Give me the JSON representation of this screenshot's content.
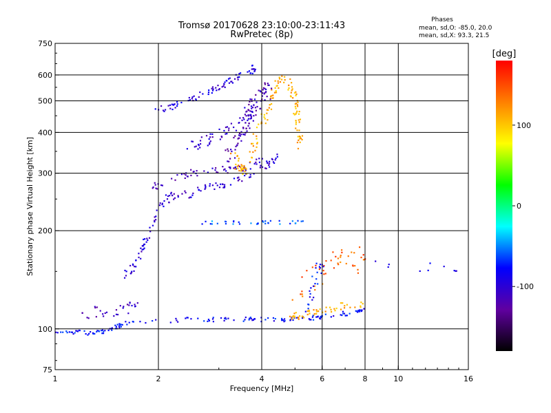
{
  "chart_data": {
    "type": "scatter",
    "title": "Tromsø 20170628 23:10:00-23:11:43",
    "subtitle": "RwPretec (8p)",
    "phases_header": "Phases",
    "phases_line1": "mean, sd,O: -85.0, 20.0",
    "phases_line2": "mean, sd,X:  93.3, 21.5",
    "xlabel": "Frequency [MHz]",
    "ylabel": "Stationary phase Virtual Height [km]",
    "x_scale": "log",
    "y_scale": "log",
    "xlim": [
      1,
      16
    ],
    "ylim": [
      75,
      750
    ],
    "x_ticks": [
      {
        "value": 1,
        "label": "1"
      },
      {
        "value": 2,
        "label": "2"
      },
      {
        "value": 4,
        "label": "4"
      },
      {
        "value": 6,
        "label": "6"
      },
      {
        "value": 8,
        "label": "8"
      },
      {
        "value": 10,
        "label": "10"
      },
      {
        "value": 16,
        "label": "16"
      }
    ],
    "x_gridlines": [
      2,
      4,
      6,
      8,
      10
    ],
    "y_ticks": [
      {
        "value": 75,
        "label": "75"
      },
      {
        "value": 100,
        "label": "100"
      },
      {
        "value": 200,
        "label": "200"
      },
      {
        "value": 300,
        "label": "300"
      },
      {
        "value": 400,
        "label": "400"
      },
      {
        "value": 500,
        "label": "500"
      },
      {
        "value": 600,
        "label": "600"
      },
      {
        "value": 750,
        "label": "750"
      }
    ],
    "y_gridlines": [
      100,
      200,
      300,
      400,
      500,
      600
    ],
    "grid": true,
    "colorbar": {
      "label": "[deg]",
      "range": [
        -180,
        180
      ],
      "ticks": [
        {
          "value": 100,
          "label": "100"
        },
        {
          "value": 0,
          "label": "0"
        },
        {
          "value": -100,
          "label": "-100"
        }
      ],
      "colors": [
        "#000000",
        "#6000a0",
        "#0000ff",
        "#00ffff",
        "#00ff00",
        "#ffff00",
        "#ff8000",
        "#ff0000"
      ]
    },
    "series": [
      {
        "traces": [
          [
            1.0,
            98
          ],
          [
            1.1,
            98
          ],
          [
            1.25,
            97
          ],
          [
            1.4,
            98
          ],
          [
            1.6,
            104
          ],
          [
            2.0,
            106
          ],
          [
            2.6,
            107
          ],
          [
            3.2,
            107
          ],
          [
            4.0,
            107
          ],
          [
            4.8,
            107
          ],
          [
            5.6,
            108
          ],
          [
            6.4,
            110
          ],
          [
            7.2,
            112
          ],
          [
            8.0,
            114
          ]
        ],
        "phase": -80,
        "n": 160,
        "jitter": 0.008
      },
      {
        "traces": [
          [
            1.2,
            112
          ],
          [
            1.4,
            113
          ],
          [
            1.6,
            115
          ],
          [
            1.75,
            118
          ]
        ],
        "phase": -110,
        "n": 30,
        "jitter": 0.02
      },
      {
        "traces": [
          [
            1.6,
            145
          ],
          [
            1.7,
            158
          ],
          [
            1.8,
            175
          ],
          [
            1.88,
            195
          ],
          [
            1.95,
            220
          ],
          [
            2.05,
            245
          ],
          [
            2.2,
            255
          ],
          [
            2.5,
            260
          ],
          [
            2.8,
            270
          ],
          [
            3.2,
            280
          ],
          [
            3.5,
            290
          ],
          [
            3.8,
            305
          ],
          [
            4.2,
            320
          ],
          [
            4.5,
            345
          ]
        ],
        "phase": -100,
        "n": 130,
        "jitter": 0.015
      },
      {
        "traces": [
          [
            1.8,
            270
          ],
          [
            2.0,
            275
          ],
          [
            2.2,
            290
          ],
          [
            2.5,
            300
          ],
          [
            2.8,
            305
          ],
          [
            3.2,
            308
          ],
          [
            3.6,
            310
          ],
          [
            4.0,
            330
          ]
        ],
        "phase": -110,
        "n": 60,
        "jitter": 0.012
      },
      {
        "traces": [
          [
            1.95,
            470
          ],
          [
            2.2,
            480
          ],
          [
            2.5,
            505
          ],
          [
            2.8,
            535
          ],
          [
            3.1,
            560
          ],
          [
            3.4,
            590
          ],
          [
            3.7,
            615
          ],
          [
            3.85,
            640
          ]
        ],
        "phase": -95,
        "n": 80,
        "jitter": 0.012
      },
      {
        "traces": [
          [
            2.4,
            360
          ],
          [
            2.8,
            380
          ],
          [
            3.2,
            410
          ],
          [
            3.6,
            450
          ],
          [
            3.8,
            500
          ]
        ],
        "phase": -105,
        "n": 60,
        "jitter": 0.02
      },
      {
        "traces": [
          [
            3.3,
            340
          ],
          [
            3.5,
            300
          ],
          [
            3.7,
            340
          ],
          [
            3.9,
            400
          ],
          [
            4.1,
            450
          ],
          [
            4.3,
            520
          ],
          [
            4.5,
            580
          ],
          [
            4.8,
            560
          ],
          [
            5.0,
            500
          ],
          [
            5.1,
            420
          ],
          [
            5.2,
            360
          ]
        ],
        "phase": 110,
        "n": 140,
        "jitter": 0.02
      },
      {
        "traces": [
          [
            3.2,
            330
          ],
          [
            3.4,
            380
          ],
          [
            3.6,
            420
          ],
          [
            3.8,
            480
          ],
          [
            4.0,
            520
          ],
          [
            4.2,
            540
          ]
        ],
        "phase": -115,
        "n": 90,
        "jitter": 0.03
      },
      {
        "traces": [
          [
            2.6,
            212
          ],
          [
            3.0,
            212
          ],
          [
            3.4,
            212
          ],
          [
            3.8,
            212
          ],
          [
            4.2,
            212
          ],
          [
            4.6,
            212
          ],
          [
            5.0,
            212
          ],
          [
            5.4,
            214
          ]
        ],
        "phase": -60,
        "n": 35,
        "jitter": 0.006
      },
      {
        "traces": [
          [
            4.8,
            108
          ],
          [
            5.2,
            110
          ],
          [
            5.6,
            112
          ],
          [
            6.0,
            115
          ],
          [
            6.5,
            116
          ],
          [
            7.2,
            118
          ],
          [
            8.0,
            120
          ]
        ],
        "phase": 110,
        "n": 50,
        "jitter": 0.015
      },
      {
        "traces": [
          [
            5.0,
            130
          ],
          [
            5.5,
            140
          ],
          [
            6.0,
            150
          ],
          [
            6.5,
            160
          ],
          [
            7.0,
            170
          ],
          [
            7.5,
            155
          ],
          [
            8.0,
            165
          ]
        ],
        "phase": 140,
        "n": 45,
        "jitter": 0.04
      },
      {
        "traces": [
          [
            5.5,
            110
          ],
          [
            5.6,
            125
          ],
          [
            5.8,
            140
          ],
          [
            6.0,
            160
          ]
        ],
        "phase": -80,
        "n": 25,
        "jitter": 0.03
      },
      {
        "traces": [
          [
            8.5,
            160
          ],
          [
            10,
            158
          ],
          [
            12,
            155
          ],
          [
            14,
            152
          ],
          [
            15,
            150
          ]
        ],
        "phase": -95,
        "n": 10,
        "jitter": 0.02
      }
    ]
  }
}
